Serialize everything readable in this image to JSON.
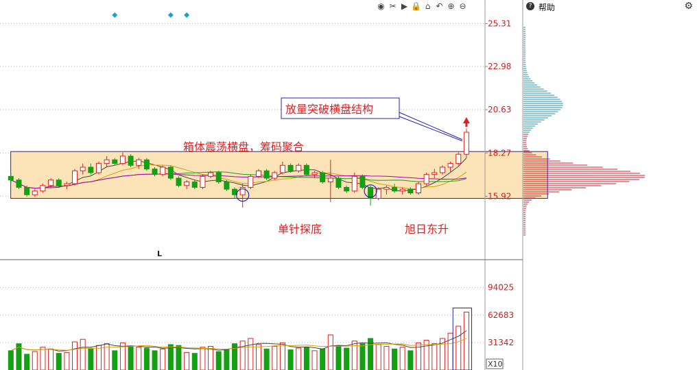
{
  "toolbar": {
    "icons": [
      "eye-icon",
      "scissors-icon",
      "play-icon",
      "lock-icon",
      "home-icon",
      "undo-icon",
      "zoom-in-icon",
      "zoom-out-icon"
    ],
    "glyphs": [
      "◉",
      "✂",
      "▶",
      "🔒",
      "⌂",
      "↶",
      "⊕",
      "⊖"
    ]
  },
  "help_panel": {
    "label": "帮助",
    "help_glyph": "?",
    "gear_glyph": "⚙"
  },
  "chart_data": {
    "type": "candlestick",
    "price_axis": {
      "ticks": [
        25.31,
        22.98,
        20.63,
        18.27,
        15.92
      ],
      "ylim": [
        12.5,
        26.6
      ]
    },
    "volume_axis": {
      "ticks": [
        94025,
        62683,
        31342
      ],
      "unit": "X10",
      "ylim": [
        0,
        125000
      ]
    },
    "box": {
      "x_start": 1,
      "x_end": 68,
      "high": 18.35,
      "low": 15.8
    },
    "marker_L": "L",
    "diamonds": [
      13,
      20,
      22
    ],
    "annotations": [
      {
        "text": "箱体震荡横盘，筹码聚合",
        "color": "#e02020"
      },
      {
        "text": "单针探底",
        "color": "#e02020"
      },
      {
        "text": "旭日东升",
        "color": "#e02020"
      },
      {
        "text": "放量突破横盘结构",
        "color": "#e02020"
      }
    ],
    "circles": [
      {
        "i": 29,
        "price": 15.98
      },
      {
        "i": 45,
        "price": 16.2
      }
    ],
    "candles": [
      [
        17.0,
        17.2,
        16.6,
        16.8
      ],
      [
        16.8,
        16.9,
        16.3,
        16.4
      ],
      [
        16.4,
        16.5,
        15.9,
        16.0
      ],
      [
        16.0,
        16.3,
        15.9,
        16.2
      ],
      [
        16.2,
        16.6,
        16.1,
        16.5
      ],
      [
        16.5,
        16.9,
        16.4,
        16.8
      ],
      [
        16.8,
        16.9,
        16.4,
        16.5
      ],
      [
        16.5,
        16.7,
        16.3,
        16.6
      ],
      [
        16.6,
        17.4,
        16.5,
        17.3
      ],
      [
        17.3,
        17.7,
        17.1,
        17.5
      ],
      [
        17.5,
        17.7,
        17.1,
        17.2
      ],
      [
        17.2,
        17.8,
        17.1,
        17.7
      ],
      [
        17.7,
        18.1,
        17.5,
        17.9
      ],
      [
        17.9,
        18.0,
        17.6,
        17.7
      ],
      [
        17.7,
        18.3,
        17.6,
        18.1
      ],
      [
        18.1,
        18.2,
        17.5,
        17.6
      ],
      [
        17.6,
        18.0,
        17.4,
        17.9
      ],
      [
        17.9,
        18.0,
        17.3,
        17.4
      ],
      [
        17.4,
        17.5,
        17.0,
        17.1
      ],
      [
        17.1,
        17.6,
        17.0,
        17.5
      ],
      [
        17.5,
        17.6,
        16.8,
        16.9
      ],
      [
        16.9,
        17.0,
        16.4,
        16.5
      ],
      [
        16.5,
        16.8,
        16.3,
        16.7
      ],
      [
        16.7,
        16.8,
        16.3,
        16.4
      ],
      [
        16.4,
        17.1,
        16.3,
        17.0
      ],
      [
        17.0,
        17.3,
        16.9,
        17.2
      ],
      [
        17.2,
        17.3,
        16.6,
        16.7
      ],
      [
        16.7,
        16.8,
        16.2,
        16.3
      ],
      [
        16.3,
        16.4,
        15.8,
        16.0
      ],
      [
        16.0,
        16.6,
        15.3,
        16.4
      ],
      [
        16.4,
        17.1,
        16.3,
        17.0
      ],
      [
        17.0,
        17.4,
        16.9,
        17.3
      ],
      [
        17.3,
        17.4,
        16.8,
        16.9
      ],
      [
        16.9,
        17.3,
        16.8,
        17.2
      ],
      [
        17.2,
        17.8,
        17.1,
        17.6
      ],
      [
        17.6,
        17.7,
        17.2,
        17.3
      ],
      [
        17.3,
        17.7,
        17.2,
        17.6
      ],
      [
        17.6,
        17.7,
        17.0,
        17.1
      ],
      [
        17.1,
        17.3,
        16.9,
        17.2
      ],
      [
        17.2,
        17.3,
        16.6,
        16.7
      ],
      [
        16.7,
        17.9,
        15.6,
        16.9
      ],
      [
        16.9,
        17.0,
        16.3,
        16.4
      ],
      [
        16.4,
        16.5,
        16.1,
        16.2
      ],
      [
        16.2,
        17.2,
        16.1,
        17.0
      ],
      [
        17.0,
        17.1,
        16.3,
        16.4
      ],
      [
        16.4,
        16.5,
        15.4,
        15.8
      ],
      [
        15.8,
        16.4,
        15.7,
        16.3
      ],
      [
        16.3,
        16.5,
        16.0,
        16.4
      ],
      [
        16.4,
        16.6,
        16.1,
        16.2
      ],
      [
        16.2,
        16.4,
        16.0,
        16.3
      ],
      [
        16.3,
        16.4,
        16.0,
        16.1
      ],
      [
        16.1,
        16.7,
        16.0,
        16.6
      ],
      [
        16.6,
        17.2,
        16.5,
        17.1
      ],
      [
        17.1,
        17.4,
        16.9,
        17.2
      ],
      [
        17.2,
        17.6,
        17.1,
        17.5
      ],
      [
        17.5,
        17.8,
        17.2,
        17.7
      ],
      [
        17.7,
        18.3,
        17.6,
        18.2
      ],
      [
        18.2,
        19.6,
        18.0,
        19.4
      ]
    ],
    "volumes": [
      22000,
      30000,
      18000,
      21000,
      26000,
      24000,
      19000,
      20000,
      32000,
      35000,
      24000,
      28000,
      30000,
      22000,
      31000,
      27000,
      26000,
      25000,
      22000,
      24000,
      29000,
      28000,
      20000,
      19000,
      26000,
      27000,
      21000,
      23000,
      30000,
      33000,
      36000,
      29000,
      24000,
      27000,
      31000,
      23000,
      25000,
      26000,
      22000,
      24000,
      40000,
      28000,
      25000,
      33000,
      30000,
      36000,
      29000,
      27000,
      24000,
      26000,
      22000,
      31000,
      34000,
      30000,
      36000,
      42000,
      50000,
      66000
    ]
  }
}
